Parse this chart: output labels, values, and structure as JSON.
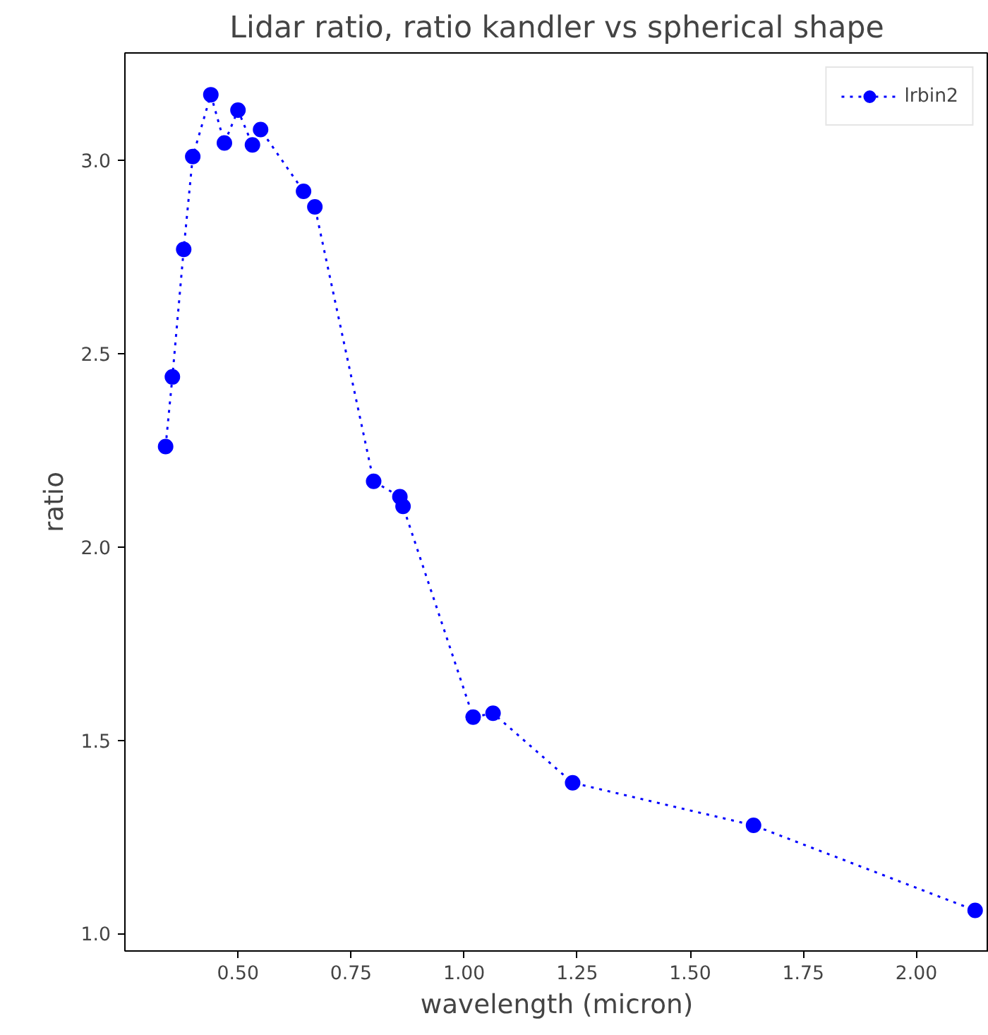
{
  "chart_data": {
    "type": "line",
    "title": "Lidar ratio, ratio kandler vs spherical shape",
    "xlabel": "wavelength (micron)",
    "ylabel": "ratio",
    "x": [
      0.34,
      0.355,
      0.38,
      0.4,
      0.44,
      0.47,
      0.5,
      0.532,
      0.55,
      0.645,
      0.67,
      0.8,
      0.858,
      0.865,
      1.02,
      1.064,
      1.24,
      1.64,
      2.13
    ],
    "series": [
      {
        "name": "lrbin2",
        "color": "#0000ff",
        "values": [
          2.26,
          2.44,
          2.77,
          3.01,
          3.17,
          3.045,
          3.13,
          3.04,
          3.08,
          2.92,
          2.88,
          2.17,
          2.13,
          2.105,
          1.56,
          1.57,
          1.39,
          1.28,
          1.06
        ]
      }
    ],
    "xlim": [
      0.25,
      2.16
    ],
    "ylim": [
      0.955,
      3.278
    ],
    "xticks": [
      {
        "value": 0.5,
        "label": "0.50"
      },
      {
        "value": 0.75,
        "label": "0.75"
      },
      {
        "value": 1,
        "label": "1.00"
      },
      {
        "value": 1.25,
        "label": "1.25"
      },
      {
        "value": 1.5,
        "label": "1.50"
      },
      {
        "value": 1.75,
        "label": "1.75"
      },
      {
        "value": 2,
        "label": "2.00"
      }
    ],
    "yticks": [
      {
        "value": 1,
        "label": "1.0"
      },
      {
        "value": 1.5,
        "label": "1.5"
      },
      {
        "value": 2,
        "label": "2.0"
      },
      {
        "value": 2.5,
        "label": "2.5"
      },
      {
        "value": 3,
        "label": "3.0"
      }
    ],
    "marker": "circle",
    "line_style": "dotted",
    "legend": "top right",
    "grid": false
  }
}
